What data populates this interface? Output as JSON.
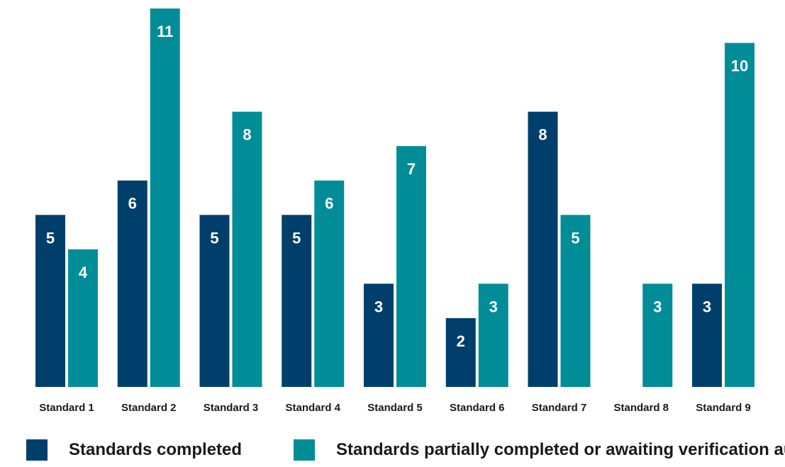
{
  "chart_data": {
    "type": "bar",
    "categories": [
      "Standard 1",
      "Standard 2",
      "Standard 3",
      "Standard 4",
      "Standard 5",
      "Standard 6",
      "Standard 7",
      "Standard 8",
      "Standard 9"
    ],
    "series": [
      {
        "name": "Standards completed",
        "color": "#003f6b",
        "values": [
          5,
          6,
          5,
          5,
          3,
          2,
          8,
          0,
          3
        ]
      },
      {
        "name": "Standards partially completed or awaiting verification audit",
        "color": "#008d98",
        "values": [
          4,
          11,
          8,
          6,
          7,
          3,
          5,
          3,
          10
        ]
      }
    ],
    "title": "",
    "xlabel": "",
    "ylabel": "",
    "ylim": [
      0,
      11
    ],
    "grid": false,
    "legend": "bottom"
  }
}
